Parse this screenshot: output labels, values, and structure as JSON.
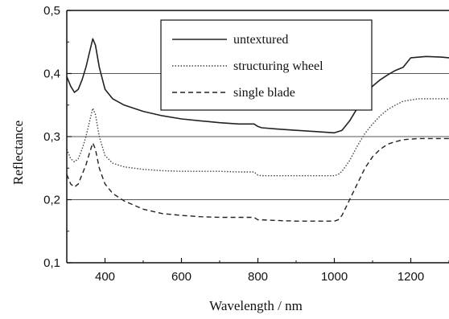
{
  "chart_data": {
    "type": "line",
    "title": "",
    "xlabel": "Wavelength / nm",
    "ylabel": "Reflectance",
    "xlim": [
      300,
      1300
    ],
    "ylim": [
      0.1,
      0.5
    ],
    "x_ticks": [
      400,
      600,
      800,
      1000,
      1200
    ],
    "x_tick_labels": [
      "400",
      "600",
      "800",
      "1000",
      "1200"
    ],
    "y_ticks": [
      0.1,
      0.2,
      0.3,
      0.4,
      0.5
    ],
    "y_tick_labels": [
      "0,1",
      "0,2",
      "0,3",
      "0,4",
      "0,5"
    ],
    "gridlines_y": [
      0.2,
      0.3,
      0.4
    ],
    "legend_position": "top-right",
    "series": [
      {
        "name": "untextured",
        "style": "solid",
        "color": "#222222",
        "x": [
          300,
          310,
          320,
          330,
          340,
          350,
          360,
          368,
          375,
          385,
          400,
          420,
          450,
          500,
          550,
          600,
          650,
          700,
          750,
          790,
          800,
          810,
          850,
          900,
          950,
          1000,
          1020,
          1040,
          1060,
          1080,
          1100,
          1120,
          1140,
          1160,
          1180,
          1200,
          1240,
          1280,
          1300
        ],
        "y": [
          0.395,
          0.38,
          0.37,
          0.375,
          0.39,
          0.41,
          0.435,
          0.455,
          0.445,
          0.41,
          0.375,
          0.36,
          0.35,
          0.34,
          0.333,
          0.328,
          0.325,
          0.322,
          0.32,
          0.32,
          0.316,
          0.314,
          0.312,
          0.31,
          0.308,
          0.306,
          0.31,
          0.325,
          0.345,
          0.365,
          0.38,
          0.39,
          0.398,
          0.405,
          0.41,
          0.425,
          0.427,
          0.426,
          0.425
        ]
      },
      {
        "name": "structuring wheel",
        "style": "dotted",
        "color": "#444444",
        "x": [
          300,
          310,
          320,
          330,
          340,
          350,
          360,
          368,
          375,
          385,
          400,
          420,
          450,
          500,
          550,
          600,
          650,
          700,
          750,
          790,
          800,
          810,
          850,
          900,
          950,
          1000,
          1010,
          1020,
          1040,
          1060,
          1080,
          1100,
          1120,
          1140,
          1160,
          1180,
          1200,
          1220,
          1240,
          1280,
          1300
        ],
        "y": [
          0.28,
          0.265,
          0.26,
          0.265,
          0.28,
          0.3,
          0.325,
          0.345,
          0.335,
          0.3,
          0.27,
          0.258,
          0.252,
          0.248,
          0.246,
          0.245,
          0.245,
          0.245,
          0.244,
          0.244,
          0.239,
          0.238,
          0.238,
          0.238,
          0.238,
          0.238,
          0.24,
          0.245,
          0.262,
          0.285,
          0.305,
          0.32,
          0.333,
          0.343,
          0.35,
          0.356,
          0.358,
          0.36,
          0.36,
          0.36,
          0.36
        ]
      },
      {
        "name": "single blade",
        "style": "dashed",
        "color": "#222222",
        "x": [
          300,
          310,
          320,
          330,
          340,
          350,
          360,
          368,
          375,
          385,
          400,
          420,
          450,
          500,
          550,
          600,
          650,
          700,
          750,
          790,
          800,
          810,
          850,
          900,
          950,
          1000,
          1010,
          1020,
          1040,
          1060,
          1080,
          1100,
          1120,
          1140,
          1160,
          1180,
          1200,
          1220,
          1240,
          1280,
          1300
        ],
        "y": [
          0.24,
          0.225,
          0.22,
          0.225,
          0.24,
          0.255,
          0.275,
          0.29,
          0.28,
          0.25,
          0.225,
          0.21,
          0.198,
          0.185,
          0.178,
          0.175,
          0.173,
          0.172,
          0.172,
          0.172,
          0.168,
          0.168,
          0.167,
          0.166,
          0.166,
          0.166,
          0.168,
          0.175,
          0.2,
          0.225,
          0.25,
          0.268,
          0.28,
          0.288,
          0.292,
          0.295,
          0.296,
          0.297,
          0.297,
          0.297,
          0.297
        ]
      }
    ]
  }
}
